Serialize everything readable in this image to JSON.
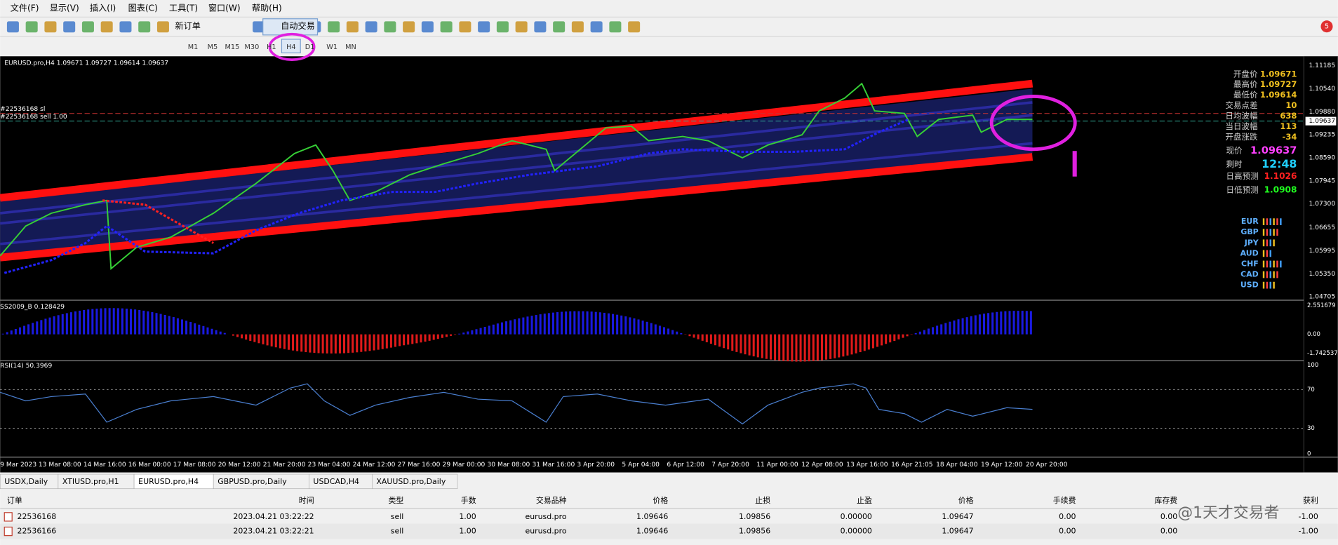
{
  "menu": [
    "文件(F)",
    "显示(V)",
    "插入(I)",
    "图表(C)",
    "工具(T)",
    "窗口(W)",
    "帮助(H)"
  ],
  "toolbar": {
    "new_order": "新订单",
    "auto_trade": "自动交易",
    "badge": "5"
  },
  "timeframes": [
    "M1",
    "M5",
    "M15",
    "M30",
    "H1",
    "H4",
    "D1",
    "W1",
    "MN"
  ],
  "chart": {
    "header": "EURUSD.pro,H4  1.09671 1.09727 1.09614 1.09637",
    "order_lines": [
      "#22536168 sl",
      "#22536168 sell 1.00"
    ],
    "price_axis": [
      "1.11185",
      "1.10540",
      "1.09880",
      "1.09637",
      "1.09235",
      "1.08590",
      "1.07945",
      "1.07300",
      "1.06655",
      "1.05995",
      "1.05350",
      "1.04705"
    ],
    "info": [
      {
        "label": "开盘价",
        "value": "1.09671"
      },
      {
        "label": "最高价",
        "value": "1.09727"
      },
      {
        "label": "最低价",
        "value": "1.09614"
      },
      {
        "label": "交易点差",
        "value": "10"
      },
      {
        "label": "日均波幅",
        "value": "638"
      },
      {
        "label": "当日波幅",
        "value": "113"
      },
      {
        "label": "开盘涨跌",
        "value": "-34"
      }
    ],
    "status": [
      {
        "label": "现价",
        "value": "1.09637"
      },
      {
        "label": "剩时",
        "value": "12:48"
      },
      {
        "label": "日高预测",
        "value": "1.1026"
      },
      {
        "label": "日低预测",
        "value": "1.0908"
      }
    ],
    "currencies": [
      "EUR",
      "GBP",
      "JPY",
      "AUD",
      "CHF",
      "CAD",
      "USD"
    ]
  },
  "indicator": {
    "label": "SS2009_B 0.128429",
    "axis": [
      "2.551679",
      "0.00",
      "-1.742537"
    ]
  },
  "rsi": {
    "label": "RSI(14) 50.3969",
    "axis": [
      "100",
      "70",
      "30",
      "0"
    ]
  },
  "time_axis": [
    "9 Mar 2023",
    "13 Mar 08:00",
    "14 Mar 16:00",
    "16 Mar 00:00",
    "17 Mar 08:00",
    "20 Mar 12:00",
    "21 Mar 20:00",
    "23 Mar 04:00",
    "24 Mar 12:00",
    "27 Mar 16:00",
    "29 Mar 00:00",
    "30 Mar 08:00",
    "31 Mar 16:00",
    "3 Apr 20:00",
    "5 Apr 04:00",
    "6 Apr 12:00",
    "7 Apr 20:00",
    "11 Apr 00:00",
    "12 Apr 08:00",
    "13 Apr 16:00",
    "16 Apr 21:05",
    "18 Apr 04:00",
    "19 Apr 12:00",
    "20 Apr 20:00"
  ],
  "tabs": [
    "USDX,Daily",
    "XTIUSD.pro,H1",
    "EURUSD.pro,H4",
    "GBPUSD.pro,Daily",
    "USDCAD,H4",
    "XAUUSD.pro,Daily"
  ],
  "table": {
    "header": [
      "订单",
      "时间",
      "类型",
      "手数",
      "交易品种",
      "价格",
      "止损",
      "止盈",
      "价格",
      "手续费",
      "库存费",
      "获利"
    ],
    "rows": [
      [
        "22536168",
        "2023.04.21 03:22:22",
        "sell",
        "1.00",
        "eurusd.pro",
        "1.09646",
        "1.09856",
        "0.00000",
        "1.09647",
        "0.00",
        "0.00",
        "-1.00"
      ],
      [
        "22536166",
        "2023.04.21 03:22:21",
        "sell",
        "1.00",
        "eurusd.pro",
        "1.09646",
        "1.09856",
        "0.00000",
        "1.09647",
        "0.00",
        "0.00",
        "-1.00"
      ]
    ]
  },
  "watermark": "@1天才交易者"
}
